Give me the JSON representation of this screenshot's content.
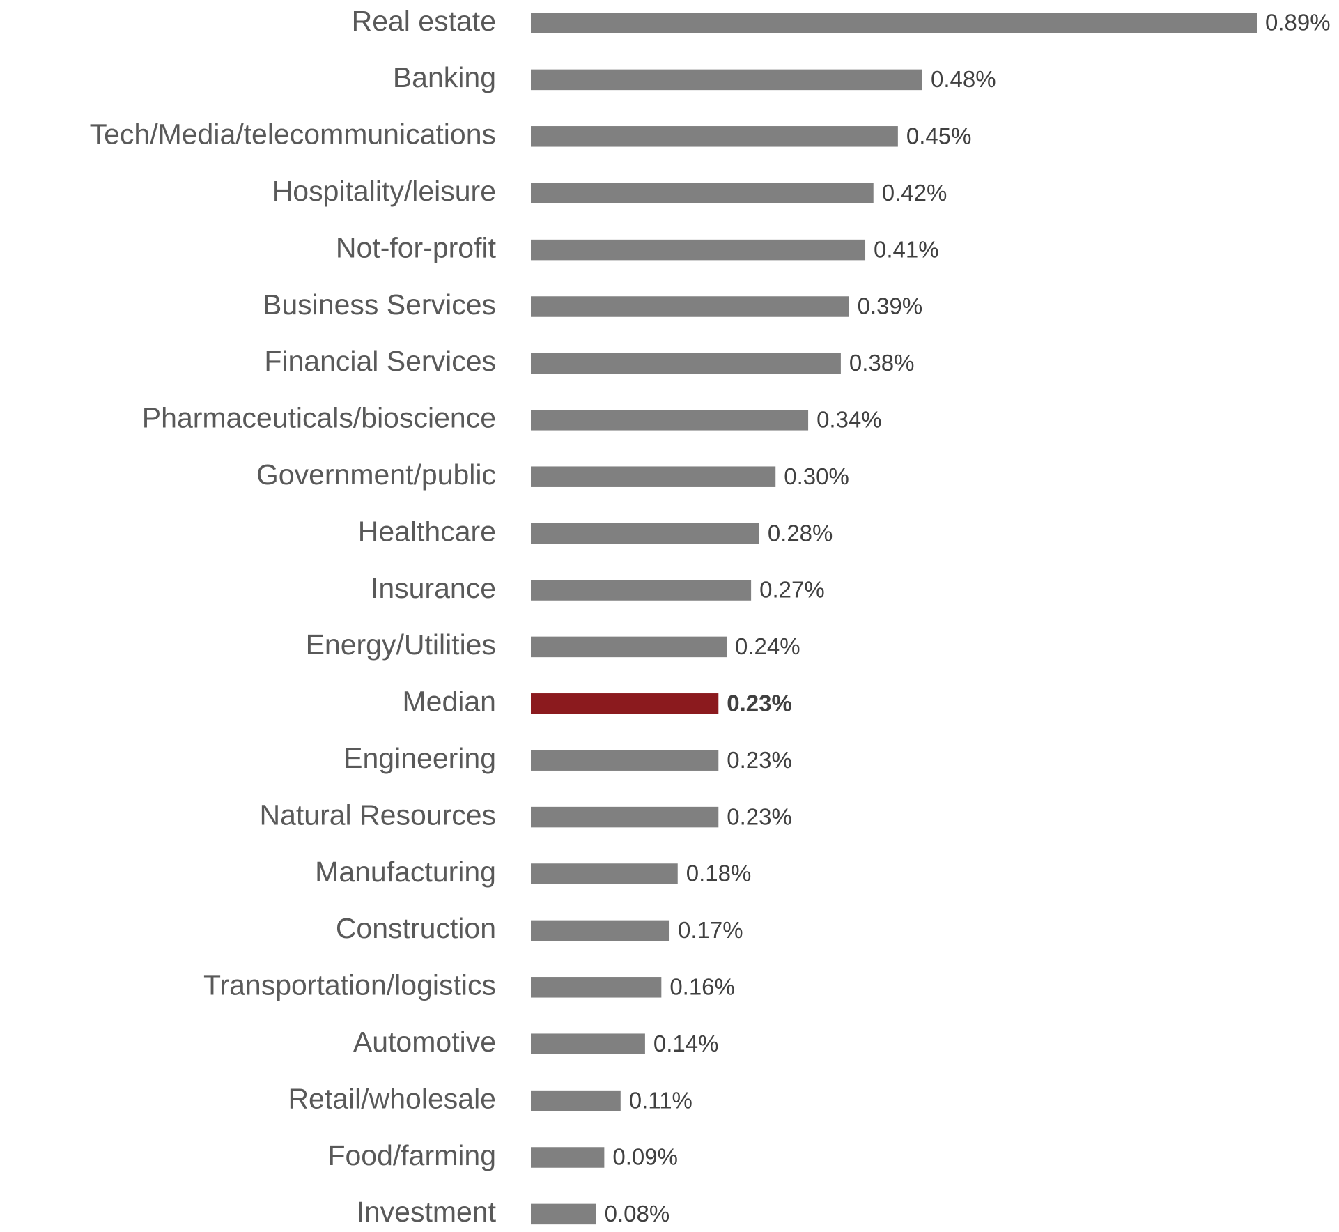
{
  "chart_data": {
    "type": "bar",
    "orientation": "horizontal",
    "categories": [
      "Real estate",
      "Banking",
      "Tech/Media/telecommunications",
      "Hospitality/leisure",
      "Not-for-profit",
      "Business Services",
      "Financial Services",
      "Pharmaceuticals/bioscience",
      "Government/public",
      "Healthcare",
      "Insurance",
      "Energy/Utilities",
      "Median",
      "Engineering",
      "Natural Resources",
      "Manufacturing",
      "Construction",
      "Transportation/logistics",
      "Automotive",
      "Retail/wholesale",
      "Food/farming",
      "Investment"
    ],
    "values": [
      0.89,
      0.48,
      0.45,
      0.42,
      0.41,
      0.39,
      0.38,
      0.34,
      0.3,
      0.28,
      0.27,
      0.24,
      0.23,
      0.23,
      0.23,
      0.18,
      0.17,
      0.16,
      0.14,
      0.11,
      0.09,
      0.08
    ],
    "value_labels": [
      "0.89%",
      "0.48%",
      "0.45%",
      "0.42%",
      "0.41%",
      "0.39%",
      "0.38%",
      "0.34%",
      "0.30%",
      "0.28%",
      "0.27%",
      "0.24%",
      "0.23%",
      "0.23%",
      "0.23%",
      "0.18%",
      "0.17%",
      "0.16%",
      "0.14%",
      "0.11%",
      "0.09%",
      "0.08%"
    ],
    "colors": [
      "#808080",
      "#808080",
      "#808080",
      "#808080",
      "#808080",
      "#808080",
      "#808080",
      "#808080",
      "#808080",
      "#808080",
      "#808080",
      "#808080",
      "#8b1a1e",
      "#808080",
      "#808080",
      "#808080",
      "#808080",
      "#808080",
      "#808080",
      "#808080",
      "#808080",
      "#808080"
    ],
    "bold": [
      "Median"
    ]
  }
}
